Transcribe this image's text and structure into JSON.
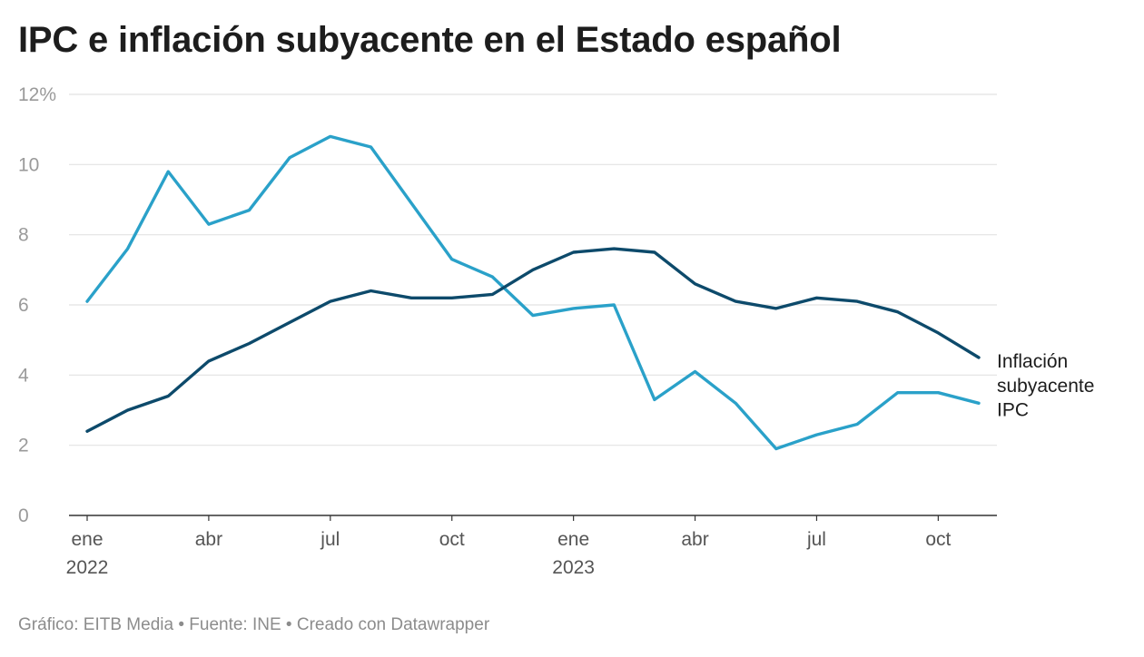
{
  "chart_data": {
    "type": "line",
    "title": "IPC e inflación subyacente en el Estado español",
    "xlabel": "",
    "ylabel": "",
    "ylim": [
      0,
      12
    ],
    "y_ticks": [
      0,
      2,
      4,
      6,
      8,
      10,
      12
    ],
    "y_tick_labels": [
      "0",
      "2",
      "4",
      "6",
      "8",
      "10",
      "12%"
    ],
    "x": [
      "2022-01",
      "2022-02",
      "2022-03",
      "2022-04",
      "2022-05",
      "2022-06",
      "2022-07",
      "2022-08",
      "2022-09",
      "2022-10",
      "2022-11",
      "2022-12",
      "2023-01",
      "2023-02",
      "2023-03",
      "2023-04",
      "2023-05",
      "2023-06",
      "2023-07",
      "2023-08",
      "2023-09",
      "2023-10",
      "2023-11"
    ],
    "x_ticks": [
      {
        "index": 0,
        "label": "ene",
        "year": "2022"
      },
      {
        "index": 3,
        "label": "abr",
        "year": ""
      },
      {
        "index": 6,
        "label": "jul",
        "year": ""
      },
      {
        "index": 9,
        "label": "oct",
        "year": ""
      },
      {
        "index": 12,
        "label": "ene",
        "year": "2023"
      },
      {
        "index": 15,
        "label": "abr",
        "year": ""
      },
      {
        "index": 18,
        "label": "jul",
        "year": ""
      },
      {
        "index": 21,
        "label": "oct",
        "year": ""
      }
    ],
    "grid": true,
    "series": [
      {
        "name": "IPC",
        "label_lines": [
          "IPC"
        ],
        "color": "#2aa1c9",
        "values": [
          6.1,
          7.6,
          9.8,
          8.3,
          8.7,
          10.2,
          10.8,
          10.5,
          8.9,
          7.3,
          6.8,
          5.7,
          5.9,
          6.0,
          3.3,
          4.1,
          3.2,
          1.9,
          2.3,
          2.6,
          3.5,
          3.5,
          3.2
        ]
      },
      {
        "name": "Inflación subyacente",
        "label_lines": [
          "Inflación",
          "subyacente"
        ],
        "color": "#0d4a6b",
        "values": [
          2.4,
          3.0,
          3.4,
          4.4,
          4.9,
          5.5,
          6.1,
          6.4,
          6.2,
          6.2,
          6.3,
          7.0,
          7.5,
          7.6,
          7.5,
          6.6,
          6.1,
          5.9,
          6.2,
          6.1,
          5.8,
          5.2,
          4.5
        ]
      }
    ]
  },
  "footer": "Gráfico: EITB Media • Fuente: INE • Creado con Datawrapper"
}
